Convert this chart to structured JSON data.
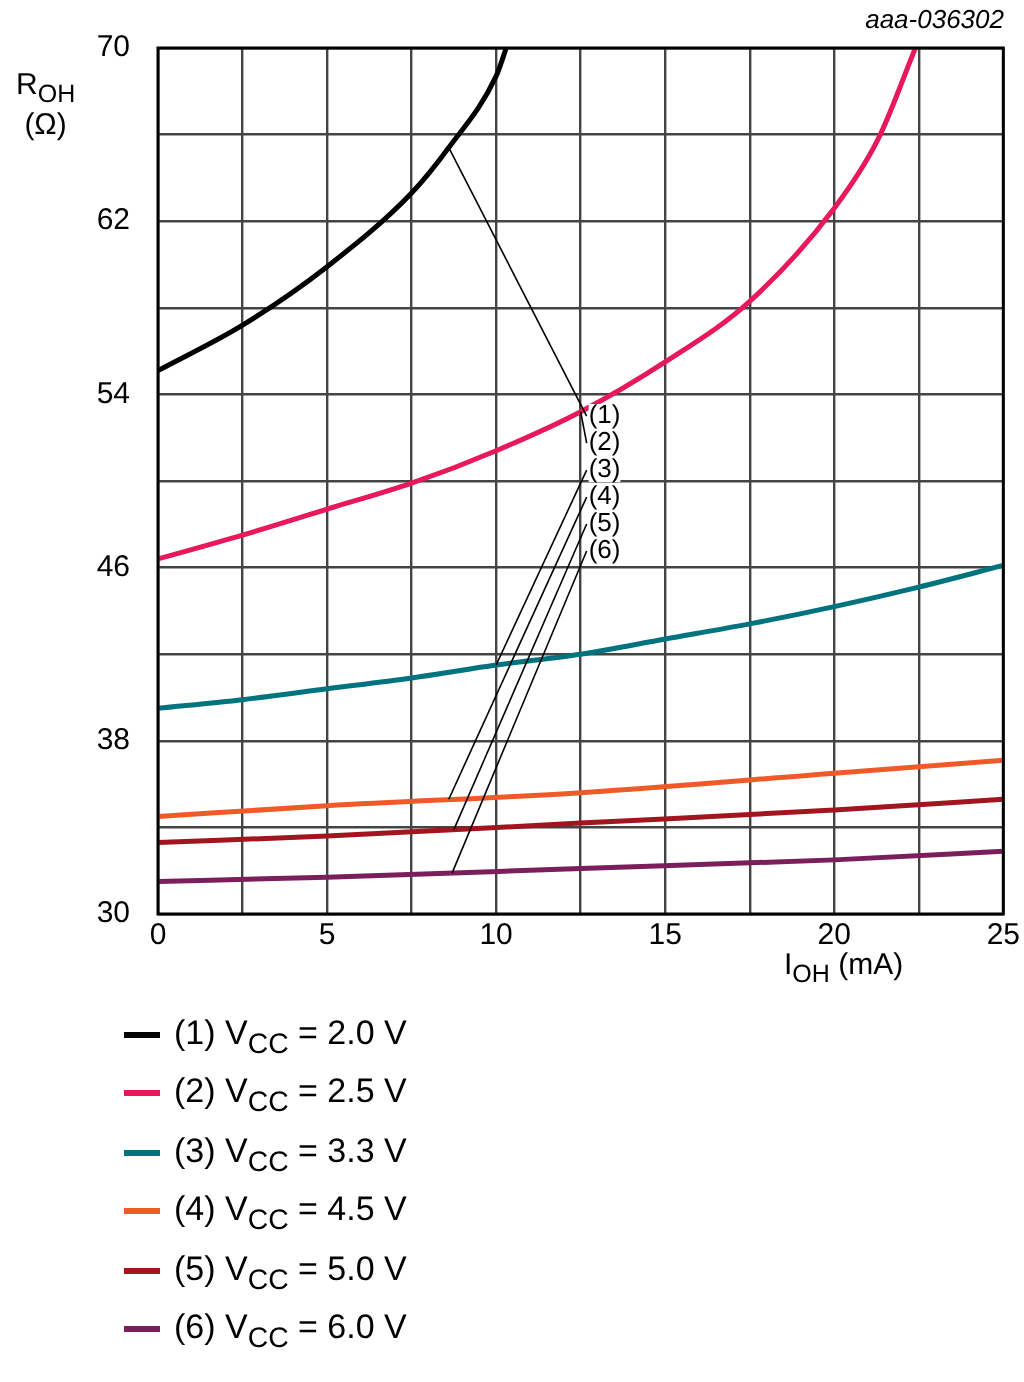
{
  "chart_data": {
    "type": "line",
    "xlabel": "I$_{OH}$ (mA)",
    "ylabel": "R$_{OH}$ (Ω)",
    "xlim": [
      0,
      25
    ],
    "ylim": [
      30,
      70
    ],
    "xticks": [
      0,
      {
        "value": 2.5,
        "label": null
      },
      5,
      {
        "value": 7.5,
        "label": null
      },
      10,
      {
        "value": 12.5,
        "label": null
      },
      15,
      {
        "value": 17.5,
        "label": null
      },
      20,
      {
        "value": 22.5,
        "label": null
      },
      25
    ],
    "yticks": [
      30,
      {
        "value": 34,
        "label": null
      },
      38,
      {
        "value": 42,
        "label": null
      },
      46,
      {
        "value": 50,
        "label": null
      },
      54,
      {
        "value": 58,
        "label": null
      },
      62,
      {
        "value": 66,
        "label": null
      },
      70
    ],
    "grid": true,
    "legend": "bottom",
    "marker": "none",
    "line_style": "solid",
    "series": [
      {
        "name": "(1) V$_{CC}$ = 2.0 V",
        "color": "#000000",
        "x": [
          0,
          2.5,
          5,
          7.5,
          8.6,
          10,
          10.3
        ],
        "values": [
          55.1,
          57.2,
          59.9,
          63.3,
          65.4,
          68.7,
          70
        ]
      },
      {
        "name": "(2) V$_{CC}$ = 2.5 V",
        "color": "#e8195a",
        "x": [
          0,
          2.5,
          5,
          7.5,
          10,
          12.5,
          15,
          17.5,
          20,
          21.3,
          22.4
        ],
        "values": [
          46.4,
          47.5,
          48.7,
          49.9,
          51.4,
          53.2,
          55.5,
          58.3,
          62.6,
          65.8,
          70
        ]
      },
      {
        "name": "(3) V$_{CC}$ = 3.3 V",
        "color": "#00737f",
        "x": [
          0,
          2.5,
          5,
          7.5,
          10,
          12.5,
          15,
          17.5,
          20,
          22.5,
          25
        ],
        "values": [
          39.5,
          39.9,
          40.4,
          40.9,
          41.5,
          42.0,
          42.7,
          43.4,
          44.2,
          45.1,
          46.1
        ]
      },
      {
        "name": "(4) V$_{CC}$ = 4.5 V",
        "color": "#f05a28",
        "x": [
          0,
          5,
          12.5,
          20,
          25
        ],
        "values": [
          34.5,
          35.0,
          35.6,
          36.5,
          37.1
        ]
      },
      {
        "name": "(5) V$_{CC}$ = 5.0 V",
        "color": "#a0151e",
        "x": [
          0,
          5,
          12.5,
          20,
          25
        ],
        "values": [
          33.3,
          33.6,
          34.2,
          34.8,
          35.3
        ]
      },
      {
        "name": "(6) V$_{CC}$ = 6.0 V",
        "color": "#7a1f5c",
        "x": [
          0,
          5,
          12.5,
          20,
          25
        ],
        "values": [
          31.5,
          31.7,
          32.1,
          32.5,
          32.9
        ]
      }
    ],
    "annotations": [
      "aaa-036302",
      {
        "text": "(1)",
        "x": 8.6,
        "y": 65.4
      },
      {
        "text": "(2)",
        "x": 12.5,
        "y": 53.2
      },
      {
        "text": "(3)",
        "x": 10,
        "y": 41.5
      },
      {
        "text": "(4)",
        "x": 8.6,
        "y": 35.3
      },
      {
        "text": "(5)",
        "x": 8.75,
        "y": 33.9
      },
      {
        "text": "(6)",
        "x": 8.7,
        "y": 31.9
      }
    ]
  }
}
